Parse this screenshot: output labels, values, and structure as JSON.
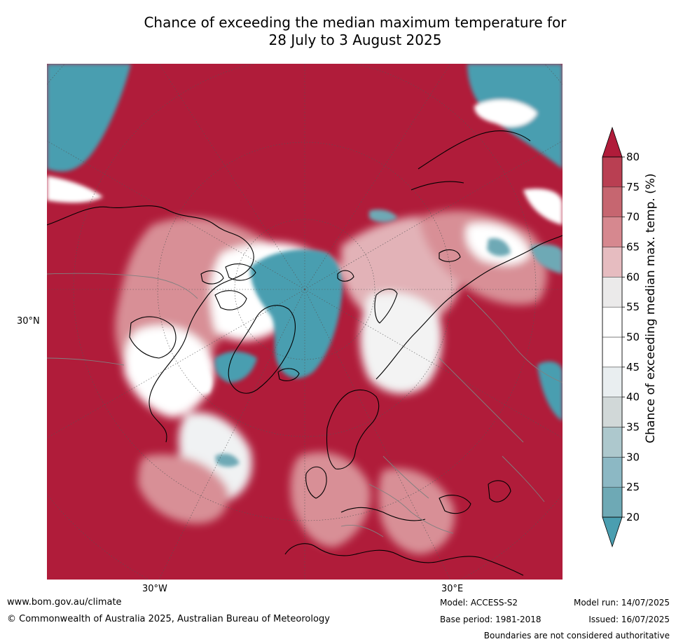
{
  "title": {
    "line1": "Chance of exceeding the median maximum temperature for",
    "line2": "28 July to 3 August 2025"
  },
  "map": {
    "projection": "north-polar-stereographic",
    "labels": {
      "lat_30n": "30°N",
      "lon_30w": "30°W",
      "lon_30e": "30°E"
    },
    "colors": {
      "ocean_high": "#b01c3a",
      "coast": "#000000",
      "borders": "#808080",
      "graticule": "#555555"
    }
  },
  "colorbar": {
    "title": "Chance of exceeding median max. temp. (%)",
    "ticks": [
      "20",
      "25",
      "30",
      "35",
      "40",
      "45",
      "50",
      "55",
      "60",
      "65",
      "70",
      "75",
      "80"
    ],
    "bands": [
      "#57a1b3",
      "#6ea9b5",
      "#8cb8c4",
      "#adc8cd",
      "#d1d8d8",
      "#e9eef0",
      "#ffffff",
      "#ffffff",
      "#ebeaea",
      "#e6bcc0",
      "#d6888f",
      "#c66670",
      "#b93f52",
      "#b01c3a"
    ],
    "under_color": "#4a9eb0",
    "over_color": "#b01c3a"
  },
  "footer": {
    "website": "www.bom.gov.au/climate",
    "copyright": "© Commonwealth of Australia 2025, Australian Bureau of Meteorology",
    "model": "Model: ACCESS-S2",
    "base_period": "Base period: 1981-2018",
    "model_run": "Model run: 14/07/2025",
    "issued": "Issued: 16/07/2025",
    "disclaimer": "Boundaries are not considered authoritative"
  }
}
